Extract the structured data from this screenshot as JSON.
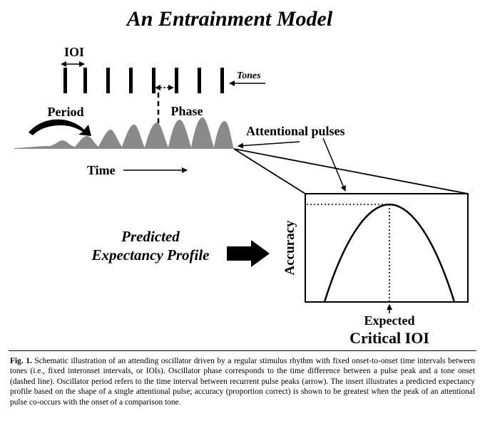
{
  "figure": {
    "title": "An Entrainment Model",
    "labels": {
      "ioi": "IOI",
      "tones": "Tones",
      "period": "Period",
      "phase": "Phase",
      "attentional_pulses": "Attentional pulses",
      "time": "Time",
      "predicted_line1": "Predicted",
      "predicted_line2": "Expectancy Profile",
      "accuracy": "Accuracy",
      "expected": "Expected",
      "critical_ioi": "Critical IOI"
    },
    "colors": {
      "ink": "#000000",
      "pulse_fill": "#8a8a8a",
      "background": "#ffffff"
    }
  },
  "caption": {
    "label": "Fig. 1.",
    "text": "Schematic illustration of an attending oscillator driven by a regular stimulus rhythm with fixed onset-to-onset time intervals between tones (i.e., fixed interonset intervals, or IOIs). Oscillator phase corresponds to the time difference between a pulse peak and a tone onset (dashed line). Oscillator period refers to the time interval between recurrent pulse peaks (arrow). The insert illustrates a predicted expectancy profile based on the shape of a single attentional pulse; accuracy (proportion correct) is shown to be greatest when the peak of an attentional pulse co-occurs with the onset of a comparison tone."
  }
}
